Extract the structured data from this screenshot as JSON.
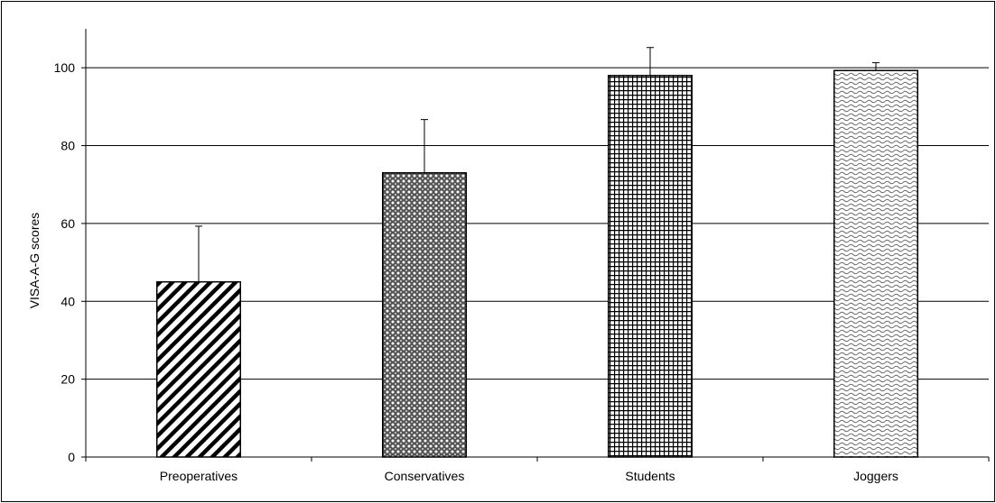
{
  "chart_data": {
    "type": "bar",
    "title": "",
    "xlabel": "",
    "ylabel": "VISA-A-G scores",
    "categories": [
      "Preoperatives",
      "Conservatives",
      "Students",
      "Joggers"
    ],
    "values": [
      45,
      73,
      98,
      99.3
    ],
    "error_upper": [
      14.3,
      13.7,
      7.2,
      2.0
    ],
    "ylim": [
      0,
      110
    ],
    "yticks": [
      0,
      20,
      40,
      60,
      80,
      100
    ],
    "grid": true,
    "legend": "none",
    "patterns": [
      "diagonal-stripes",
      "diamond-dots",
      "grid-check",
      "wave"
    ]
  }
}
